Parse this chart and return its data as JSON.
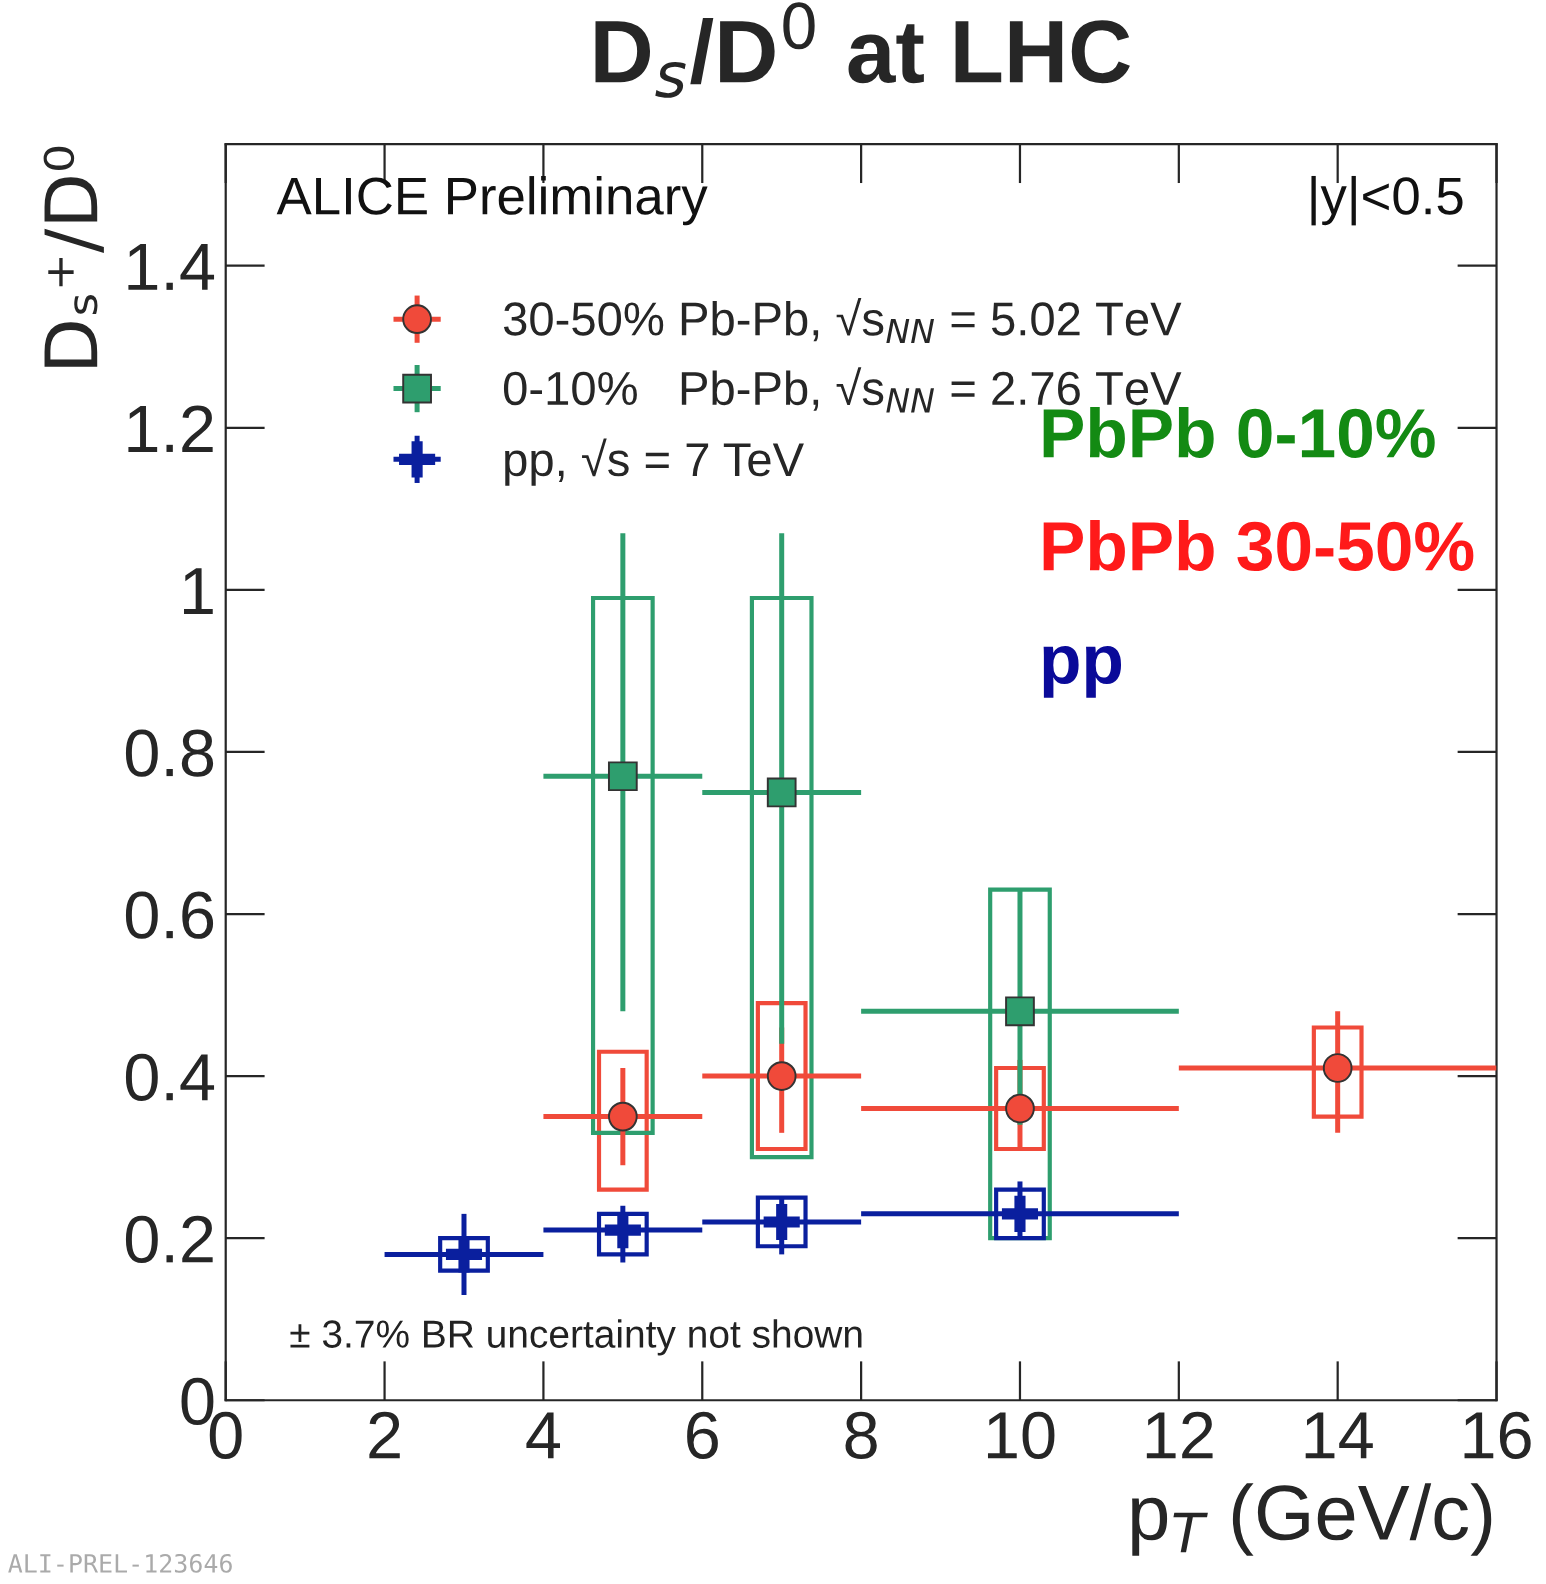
{
  "chart_data": {
    "type": "scatter",
    "title": "D$_{s}$/D$^{0}$ at LHC",
    "xlabel": "p$_{T}$ (GeV/c)",
    "ylabel": "Dₛ⁺/D⁰",
    "xlim": [
      0,
      16
    ],
    "ylim": [
      0,
      1.55
    ],
    "xticks": [
      0,
      2,
      4,
      6,
      8,
      10,
      12,
      14,
      16
    ],
    "yticks": [
      0,
      0.2,
      0.4,
      0.6,
      0.8,
      1,
      1.2,
      1.4
    ],
    "grid": false,
    "legend": "top left",
    "series": [
      {
        "type": "bar",
        "color": "#f04a3a",
        "x": [
          5,
          7,
          10,
          14
        ],
        "base": [
          0.26,
          0.31,
          0.31,
          0.35
        ],
        "values": [
          0.17,
          0.18,
          0.1,
          0.11
        ]
      },
      {
        "type": "bar",
        "color": "#2e9e6e",
        "x": [
          5,
          7,
          10
        ],
        "base": [
          0.33,
          0.3,
          0.2
        ],
        "values": [
          0.66,
          0.69,
          0.43
        ]
      },
      {
        "type": "bar",
        "color": "#0a1f9e",
        "x": [
          3,
          5,
          7,
          10
        ],
        "base": [
          0.16,
          0.18,
          0.19,
          0.2
        ],
        "values": [
          0.04,
          0.05,
          0.06,
          0.06
        ]
      },
      {
        "name": "30-50% Pb-Pb, √s$_{NN}$ = 5.02 TeV",
        "color": "#f04a3a",
        "marker": "circle",
        "x": [
          5,
          7,
          10,
          14
        ],
        "values": [
          0.35,
          0.4,
          0.36,
          0.41
        ],
        "errors": [
          [
            0.29,
            0.41
          ],
          [
            0.33,
            0.46
          ],
          [
            0.31,
            0.42
          ],
          [
            0.33,
            0.48
          ]
        ],
        "xerrors": [
          1,
          1,
          2,
          2
        ]
      },
      {
        "name": "0-10%   Pb-Pb, √s$_{NN}$ = 2.76 TeV",
        "color": "#2e9e6e",
        "marker": "square",
        "x": [
          5,
          7,
          10
        ],
        "values": [
          0.77,
          0.75,
          0.48
        ],
        "errors": [
          [
            0.48,
            1.07
          ],
          [
            0.44,
            1.07
          ],
          [
            0.34,
            0.63
          ]
        ],
        "xerrors": [
          1,
          1,
          2
        ]
      },
      {
        "name": "pp, √s = 7 TeV",
        "color": "#0a1f9e",
        "marker": "cross",
        "x": [
          3,
          5,
          7,
          10
        ],
        "values": [
          0.18,
          0.21,
          0.22,
          0.23
        ],
        "errors": [
          [
            0.13,
            0.23
          ],
          [
            0.17,
            0.24
          ],
          [
            0.18,
            0.25
          ],
          [
            0.2,
            0.27
          ]
        ],
        "xerrors": [
          1,
          1,
          1,
          2
        ]
      }
    ],
    "annotations": [
      "ALICE Preliminary",
      "|y|<0.5",
      "PbPb 0-10%",
      "PbPb 30-50%",
      "pp",
      "± 3.7% BR uncertainty not shown",
      "ALI-PREL-123646"
    ]
  }
}
